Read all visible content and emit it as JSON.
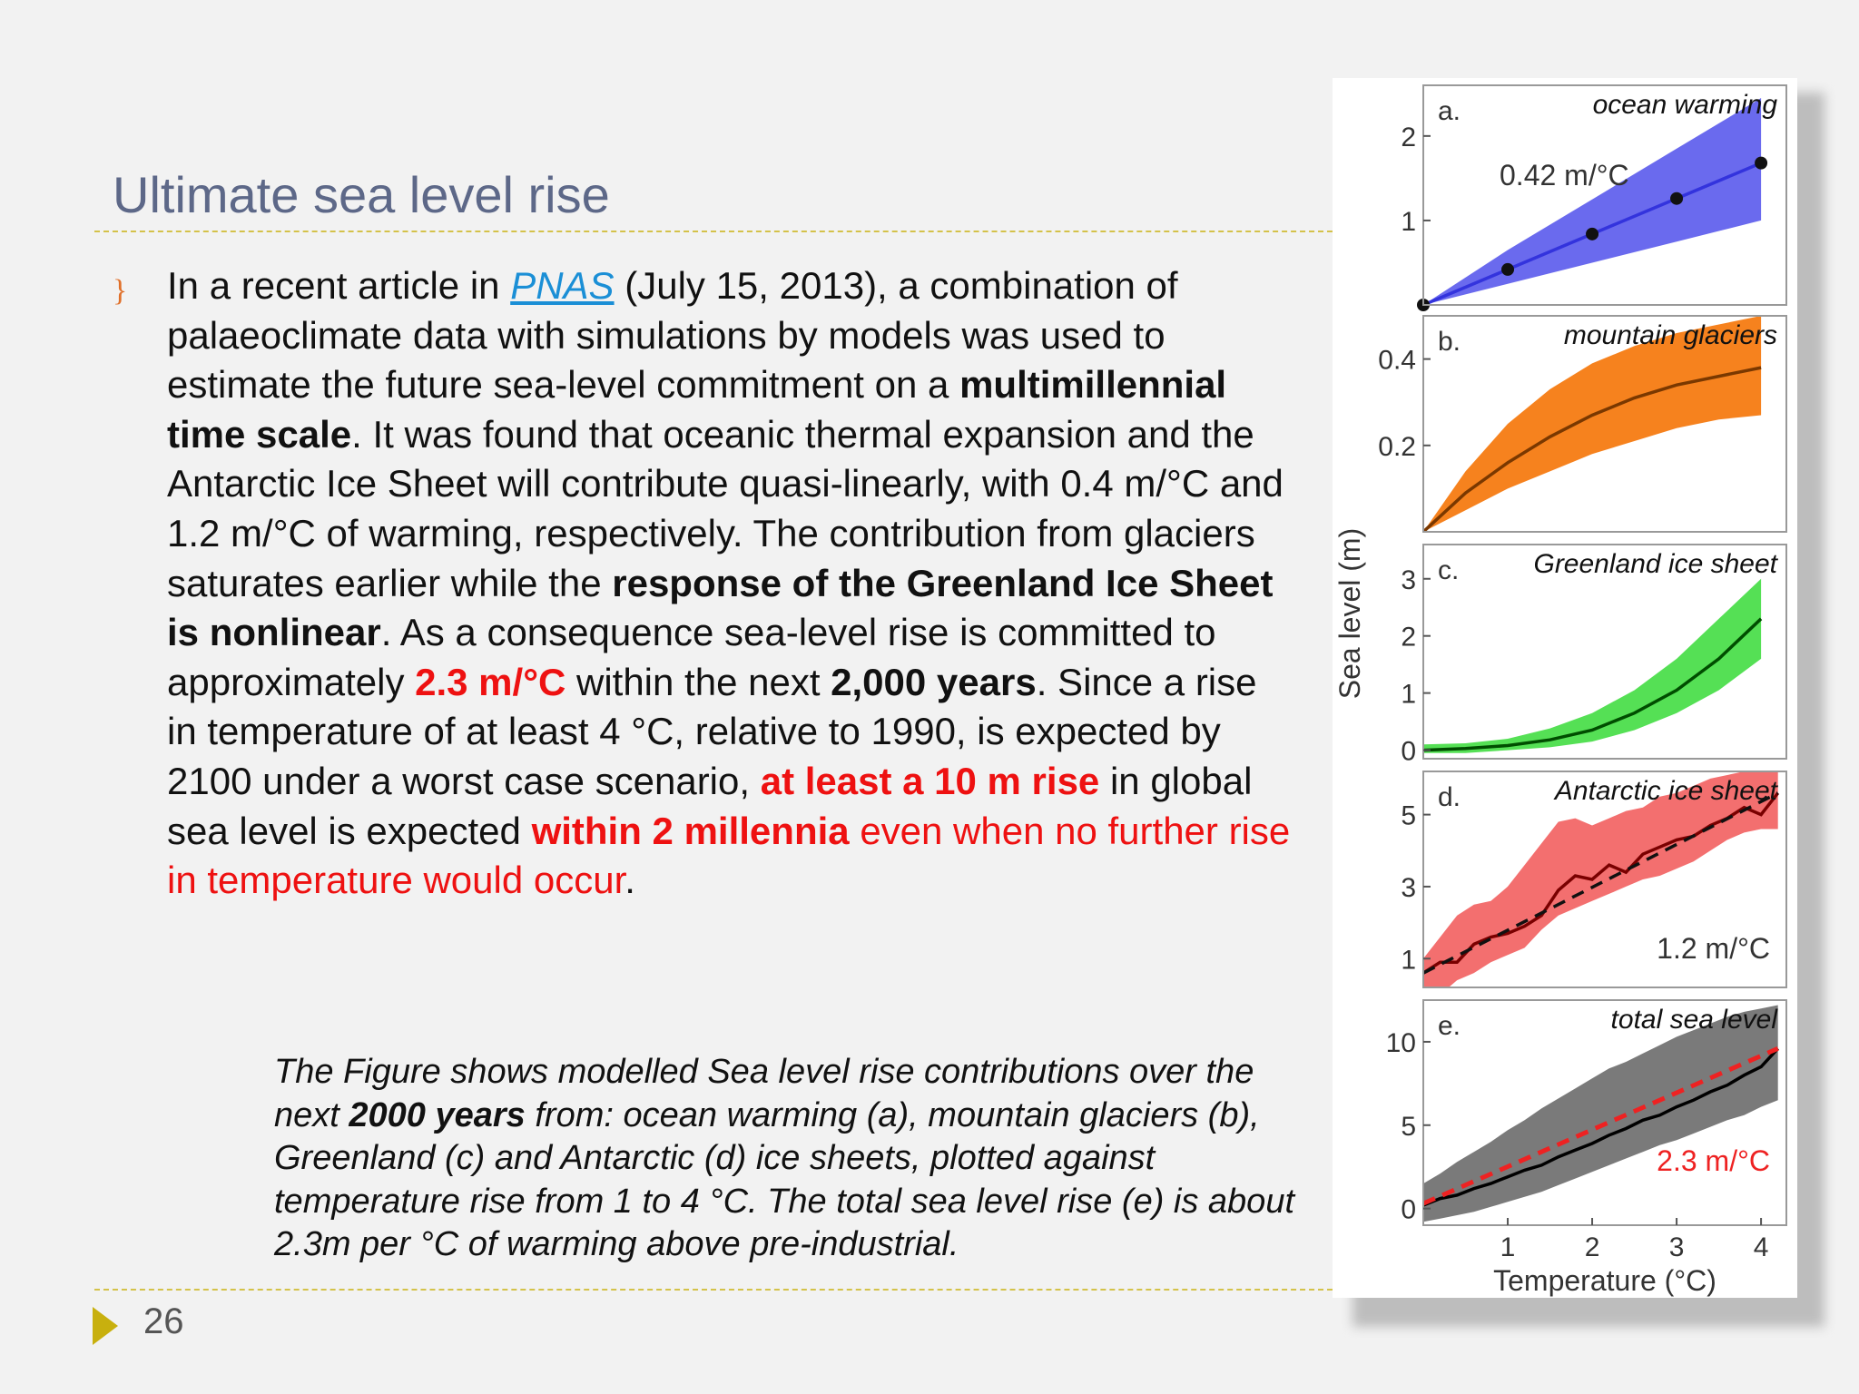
{
  "slide": {
    "title": "Ultimate sea level rise",
    "bullet_marker": "}",
    "body": {
      "t1": "In a recent article in ",
      "link": "PNAS",
      "t2": " (July 15, 2013), a combination of palaeoclimate data with simulations by models was used to estimate the future sea-level commitment on a ",
      "b1": "multimillennial time scale",
      "t3": ".  It was found that oceanic thermal expansion and the Antarctic Ice Sheet will contribute quasi-linearly, with 0.4 m/°C  and 1.2 m/°C of warming, respectively. The contribution from glaciers saturates earlier while the ",
      "b2": "response of the Greenland Ice Sheet is nonlinear",
      "t4": ".  As a consequence sea-level rise is committed to approximately ",
      "r1": "2.3 m/°C",
      "t5": " within the next ",
      "b3": "2,000 years",
      "t6": ". Since a rise in temperature of at least 4 °C, relative to 1990, is expected by 2100 under a worst case scenario, ",
      "r2": "at least a 10 m rise",
      "t7": " in global sea level is expected ",
      "r3": "within 2 millennia",
      "t8": " ",
      "r4": "even when no further rise in temperature would occur",
      "t9": "."
    },
    "caption": {
      "c1": "The Figure shows modelled Sea level rise contributions over the next ",
      "cb": "2000 years",
      "c2": " from: ocean warming (a), mountain glaciers (b), Greenland (c) and Antarctic (d) ice sheets, plotted against temperature rise from 1 to 4 °C. The total sea level rise (e) is about 2.3m per °C of warming above pre-industrial."
    },
    "page_number": "26"
  },
  "chart_data": [
    {
      "type": "line",
      "panel_letter": "a.",
      "title": "ocean warming",
      "annotation": "0.42 m/°C",
      "x": [
        0,
        1,
        2,
        3,
        4
      ],
      "y": [
        0,
        0.42,
        0.84,
        1.26,
        1.68
      ],
      "band_low": [
        0,
        0.25,
        0.5,
        0.75,
        1.0
      ],
      "band_high": [
        0,
        0.65,
        1.25,
        1.85,
        2.45
      ],
      "ylim": [
        0,
        2.6
      ],
      "yticks": [
        "1",
        "2"
      ],
      "ytick_values": [
        1,
        2
      ],
      "color": "#3333dd",
      "band_color": "#6a6aee"
    },
    {
      "type": "line",
      "panel_letter": "b.",
      "title": "mountain glaciers",
      "x": [
        0,
        0.5,
        1,
        1.5,
        2,
        2.5,
        3,
        3.5,
        4
      ],
      "y": [
        0,
        0.09,
        0.16,
        0.22,
        0.27,
        0.31,
        0.34,
        0.36,
        0.38
      ],
      "band_low": [
        0,
        0.05,
        0.1,
        0.14,
        0.18,
        0.21,
        0.24,
        0.26,
        0.27
      ],
      "band_high": [
        0,
        0.14,
        0.25,
        0.33,
        0.39,
        0.43,
        0.46,
        0.48,
        0.5
      ],
      "ylim": [
        0,
        0.5
      ],
      "yticks": [
        "0.2",
        "0.4"
      ],
      "ytick_values": [
        0.2,
        0.4
      ],
      "color": "#7a3800",
      "band_color": "#f6821e"
    },
    {
      "type": "line",
      "panel_letter": "c.",
      "title": "Greenland ice sheet",
      "x": [
        0,
        0.5,
        1,
        1.5,
        2,
        2.5,
        3,
        3.5,
        4
      ],
      "y": [
        0,
        0.03,
        0.08,
        0.18,
        0.35,
        0.65,
        1.05,
        1.6,
        2.3
      ],
      "band_low": [
        -0.05,
        -0.05,
        0,
        0.05,
        0.15,
        0.35,
        0.65,
        1.05,
        1.6
      ],
      "band_high": [
        0.1,
        0.12,
        0.2,
        0.38,
        0.65,
        1.05,
        1.6,
        2.3,
        3.0
      ],
      "ylim": [
        -0.15,
        3.6
      ],
      "yticks": [
        "0",
        "1",
        "2",
        "3"
      ],
      "ytick_values": [
        0,
        1,
        2,
        3
      ],
      "color": "#004d00",
      "band_color": "#55e055"
    },
    {
      "type": "line",
      "panel_letter": "d.",
      "title": "Antarctic ice sheet",
      "annotation": "1.2 m/°C",
      "x": [
        0,
        0.2,
        0.4,
        0.6,
        0.8,
        1.0,
        1.2,
        1.4,
        1.6,
        1.8,
        2.0,
        2.2,
        2.4,
        2.6,
        2.8,
        3.0,
        3.2,
        3.4,
        3.6,
        3.8,
        4.0,
        4.2
      ],
      "y": [
        0.6,
        0.9,
        0.9,
        1.4,
        1.6,
        1.7,
        1.9,
        2.2,
        2.9,
        3.3,
        3.2,
        3.6,
        3.4,
        3.9,
        4.1,
        4.3,
        4.4,
        4.7,
        4.9,
        5.2,
        5.0,
        5.6
      ],
      "trend": [
        0.6,
        5.6
      ],
      "band_low": [
        0,
        0,
        0.4,
        0.6,
        0.9,
        1.1,
        1.3,
        1.8,
        2.2,
        2.4,
        2.6,
        2.8,
        3.0,
        3.2,
        3.3,
        3.5,
        3.7,
        4.0,
        4.3,
        4.5,
        4.6,
        4.6
      ],
      "band_high": [
        1.0,
        1.6,
        2.2,
        2.5,
        2.6,
        3.0,
        3.6,
        4.2,
        4.8,
        4.9,
        4.7,
        4.9,
        5.1,
        5.2,
        5.5,
        5.6,
        5.8,
        6.0,
        6.1,
        6.2,
        6.2,
        6.2
      ],
      "ylim": [
        0.2,
        6.2
      ],
      "yticks": [
        "1",
        "3",
        "5"
      ],
      "ytick_values": [
        1,
        3,
        5
      ],
      "color": "#7a0000",
      "band_color": "#f36f6f"
    },
    {
      "type": "line",
      "panel_letter": "e.",
      "title": "total sea level",
      "annotation": "2.3 m/°C",
      "x": [
        0,
        0.2,
        0.4,
        0.6,
        0.8,
        1.0,
        1.2,
        1.4,
        1.6,
        1.8,
        2.0,
        2.2,
        2.4,
        2.6,
        2.8,
        3.0,
        3.2,
        3.4,
        3.6,
        3.8,
        4.0,
        4.2
      ],
      "y": [
        0.2,
        0.6,
        0.8,
        1.2,
        1.5,
        1.9,
        2.3,
        2.6,
        3.1,
        3.5,
        3.9,
        4.4,
        4.8,
        5.3,
        5.6,
        6.1,
        6.5,
        7.0,
        7.4,
        8.0,
        8.5,
        9.6
      ],
      "trend": [
        0.3,
        9.6
      ],
      "band_low": [
        -0.8,
        -0.6,
        -0.4,
        -0.2,
        0.1,
        0.4,
        0.7,
        1.0,
        1.4,
        1.8,
        2.2,
        2.6,
        3.0,
        3.4,
        3.8,
        4.1,
        4.5,
        4.9,
        5.3,
        5.6,
        6.1,
        6.5
      ],
      "band_high": [
        1.5,
        2.1,
        2.8,
        3.4,
        4.0,
        4.7,
        5.3,
        6.0,
        6.6,
        7.2,
        7.8,
        8.4,
        8.8,
        9.3,
        9.8,
        10.3,
        10.7,
        11.1,
        11.5,
        11.8,
        12.0,
        12.2
      ],
      "ylim": [
        -1,
        12.5
      ],
      "yticks": [
        "0",
        "5",
        "10"
      ],
      "ytick_values": [
        0,
        5,
        10
      ],
      "color": "#000000",
      "band_color": "#7a7a7a",
      "trend_color": "#ee2222"
    }
  ],
  "chart_axes": {
    "ylabel": "Sea level (m)",
    "xlabel": "Temperature (°C)",
    "xticks": [
      "1",
      "2",
      "3",
      "4"
    ],
    "xtick_values": [
      1,
      2,
      3,
      4
    ],
    "xlim": [
      0,
      4.3
    ]
  }
}
